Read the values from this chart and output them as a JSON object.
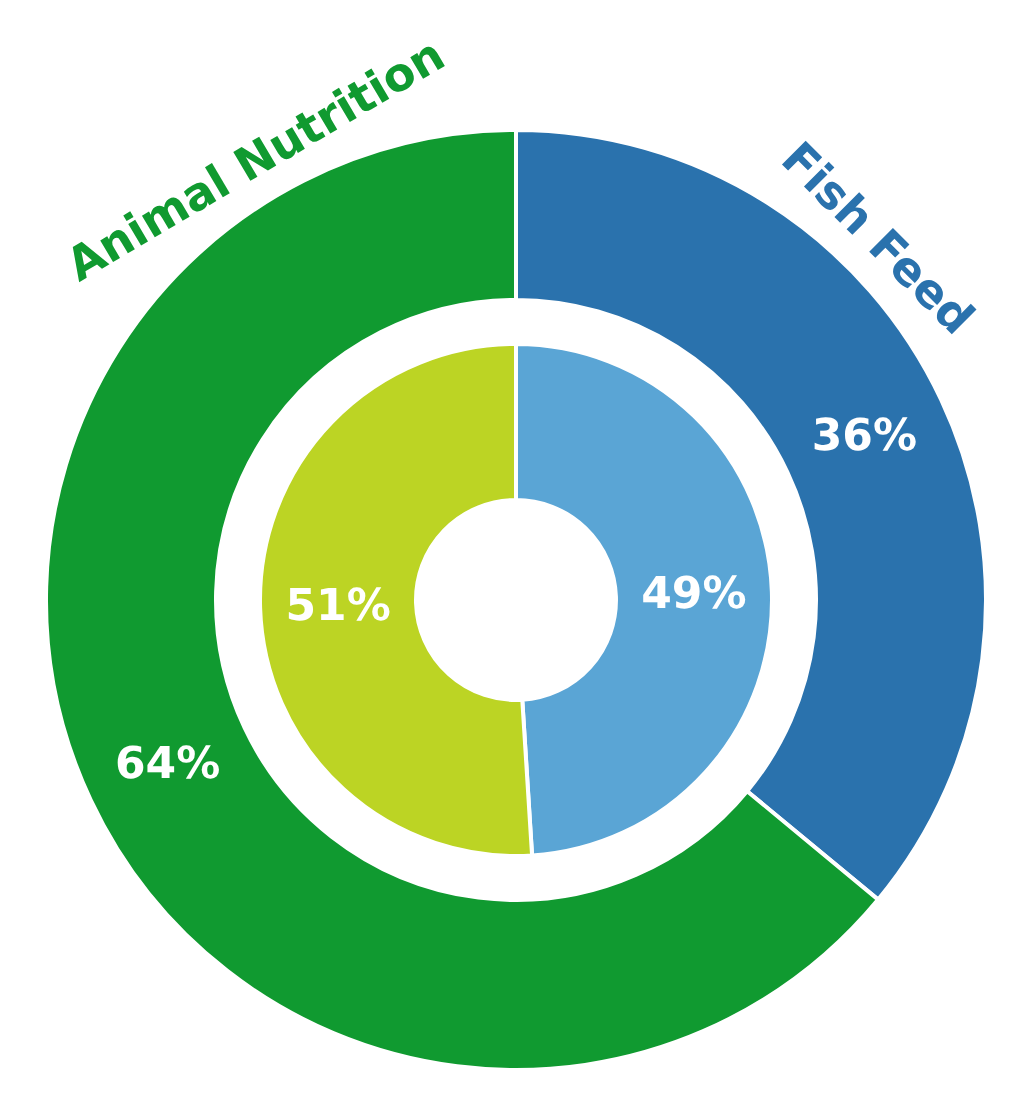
{
  "chart_data": {
    "type": "donut",
    "categories": [
      "Fish Feed",
      "Animal Nutrition"
    ],
    "series": [
      {
        "values": [
          36,
          64
        ],
        "colors": [
          "#2a72ad",
          "#109a30"
        ],
        "value_labels": [
          "36%",
          "64%"
        ]
      },
      {
        "values": [
          49,
          51
        ],
        "colors": [
          "#5aa5d5",
          "#bcd424"
        ],
        "value_labels": [
          "49%",
          "51%"
        ]
      }
    ]
  }
}
